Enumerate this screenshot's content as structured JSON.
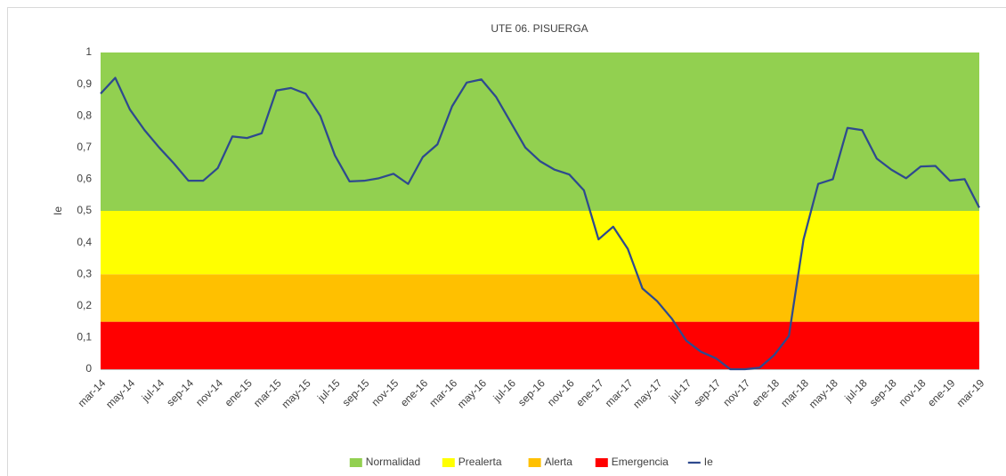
{
  "chart_data": {
    "type": "combo",
    "title": "UTE 06. PISUERGA",
    "y_label": "Ie",
    "categories": [
      "mar-14",
      null,
      "may-14",
      null,
      "jul-14",
      null,
      "sep-14",
      null,
      "nov-14",
      null,
      "ene-15",
      null,
      "mar-15",
      null,
      "may-15",
      null,
      "jul-15",
      null,
      "sep-15",
      null,
      "nov-15",
      null,
      "ene-16",
      null,
      "mar-16",
      null,
      "may-16",
      null,
      "jul-16",
      null,
      "sep-16",
      null,
      "nov-16",
      null,
      "ene-17",
      null,
      "mar-17",
      null,
      "may-17",
      null,
      "jul-17",
      null,
      "sep-17",
      null,
      "nov-17",
      null,
      "ene-18",
      null,
      "mar-18",
      null,
      "may-18",
      null,
      "jul-18",
      null,
      "sep-18",
      null,
      "nov-18",
      null,
      "ene-19",
      null,
      "mar-19"
    ],
    "series": [
      {
        "name": "Normalidad",
        "type": "area",
        "color": "#92d050",
        "values": [
          0.5,
          0.5,
          0.5,
          0.5,
          0.5,
          0.5,
          0.5,
          0.5,
          0.5,
          0.5,
          0.5,
          0.5,
          0.5,
          0.5,
          0.5,
          0.5,
          0.5,
          0.5,
          0.5,
          0.5,
          0.5,
          0.5,
          0.5,
          0.5,
          0.5,
          0.5,
          0.5,
          0.5,
          0.5,
          0.5,
          0.5,
          0.5,
          0.5,
          0.5,
          0.5,
          0.5,
          0.5,
          0.5,
          0.5,
          0.5,
          0.5,
          0.5,
          0.5,
          0.5,
          0.5,
          0.5,
          0.5,
          0.5,
          0.5,
          0.5,
          0.5,
          0.5,
          0.5,
          0.5,
          0.5,
          0.5,
          0.5,
          0.5,
          0.5,
          0.5,
          0.5
        ]
      },
      {
        "name": "Prealerta",
        "type": "area",
        "color": "#ffff00",
        "values": [
          0.2,
          0.2,
          0.2,
          0.2,
          0.2,
          0.2,
          0.2,
          0.2,
          0.2,
          0.2,
          0.2,
          0.2,
          0.2,
          0.2,
          0.2,
          0.2,
          0.2,
          0.2,
          0.2,
          0.2,
          0.2,
          0.2,
          0.2,
          0.2,
          0.2,
          0.2,
          0.2,
          0.2,
          0.2,
          0.2,
          0.2,
          0.2,
          0.2,
          0.2,
          0.2,
          0.2,
          0.2,
          0.2,
          0.2,
          0.2,
          0.2,
          0.2,
          0.2,
          0.2,
          0.2,
          0.2,
          0.2,
          0.2,
          0.2,
          0.2,
          0.2,
          0.2,
          0.2,
          0.2,
          0.2,
          0.2,
          0.2,
          0.2,
          0.2,
          0.2,
          0.2
        ]
      },
      {
        "name": "Alerta",
        "type": "area",
        "color": "#ffc000",
        "values": [
          0.15,
          0.15,
          0.15,
          0.15,
          0.15,
          0.15,
          0.15,
          0.15,
          0.15,
          0.15,
          0.15,
          0.15,
          0.15,
          0.15,
          0.15,
          0.15,
          0.15,
          0.15,
          0.15,
          0.15,
          0.15,
          0.15,
          0.15,
          0.15,
          0.15,
          0.15,
          0.15,
          0.15,
          0.15,
          0.15,
          0.15,
          0.15,
          0.15,
          0.15,
          0.15,
          0.15,
          0.15,
          0.15,
          0.15,
          0.15,
          0.15,
          0.15,
          0.15,
          0.15,
          0.15,
          0.15,
          0.15,
          0.15,
          0.15,
          0.15,
          0.15,
          0.15,
          0.15,
          0.15,
          0.15,
          0.15,
          0.15,
          0.15,
          0.15,
          0.15,
          0.15
        ]
      },
      {
        "name": "Emergencia",
        "type": "area",
        "color": "#ff0000",
        "values": [
          0.15,
          0.15,
          0.15,
          0.15,
          0.15,
          0.15,
          0.15,
          0.15,
          0.15,
          0.15,
          0.15,
          0.15,
          0.15,
          0.15,
          0.15,
          0.15,
          0.15,
          0.15,
          0.15,
          0.15,
          0.15,
          0.15,
          0.15,
          0.15,
          0.15,
          0.15,
          0.15,
          0.15,
          0.15,
          0.15,
          0.15,
          0.15,
          0.15,
          0.15,
          0.15,
          0.15,
          0.15,
          0.15,
          0.15,
          0.15,
          0.15,
          0.15,
          0.15,
          0.15,
          0.15,
          0.15,
          0.15,
          0.15,
          0.15,
          0.15,
          0.15,
          0.15,
          0.15,
          0.15,
          0.15,
          0.15,
          0.15,
          0.15,
          0.15,
          0.15,
          0.15
        ]
      },
      {
        "name": "Ie",
        "type": "line",
        "color": "#2e4a8e",
        "values": [
          0.87,
          0.92,
          0.82,
          0.755,
          0.7,
          0.65,
          0.595,
          0.595,
          0.635,
          0.735,
          0.73,
          0.745,
          0.88,
          0.888,
          0.87,
          0.8,
          0.675,
          0.593,
          0.595,
          0.603,
          0.617,
          0.585,
          0.67,
          0.71,
          0.83,
          0.905,
          0.915,
          0.86,
          0.78,
          0.7,
          0.657,
          0.63,
          0.615,
          0.565,
          0.41,
          0.45,
          0.38,
          0.255,
          0.215,
          0.16,
          0.09,
          0.055,
          0.035,
          0.0,
          0.0,
          0.005,
          0.045,
          0.105,
          0.41,
          0.585,
          0.6,
          0.762,
          0.755,
          0.665,
          0.63,
          0.603,
          0.64,
          0.642,
          0.595,
          0.6,
          0.51
        ]
      }
    ],
    "ylim": [
      0,
      1
    ],
    "yticks": [
      0,
      {
        "value": 0.1,
        "label": "0,1"
      },
      {
        "value": 0.2,
        "label": "0,2"
      },
      {
        "value": 0.3,
        "label": "0,3"
      },
      {
        "value": 0.4,
        "label": "0,4"
      },
      {
        "value": 0.5,
        "label": "0,5"
      },
      {
        "value": 0.6,
        "label": "0,6"
      },
      {
        "value": 0.7,
        "label": "0,7"
      },
      {
        "value": 0.8,
        "label": "0,8"
      },
      {
        "value": 0.9,
        "label": "0,9"
      },
      1
    ],
    "grid": false,
    "legend": "bottom"
  }
}
